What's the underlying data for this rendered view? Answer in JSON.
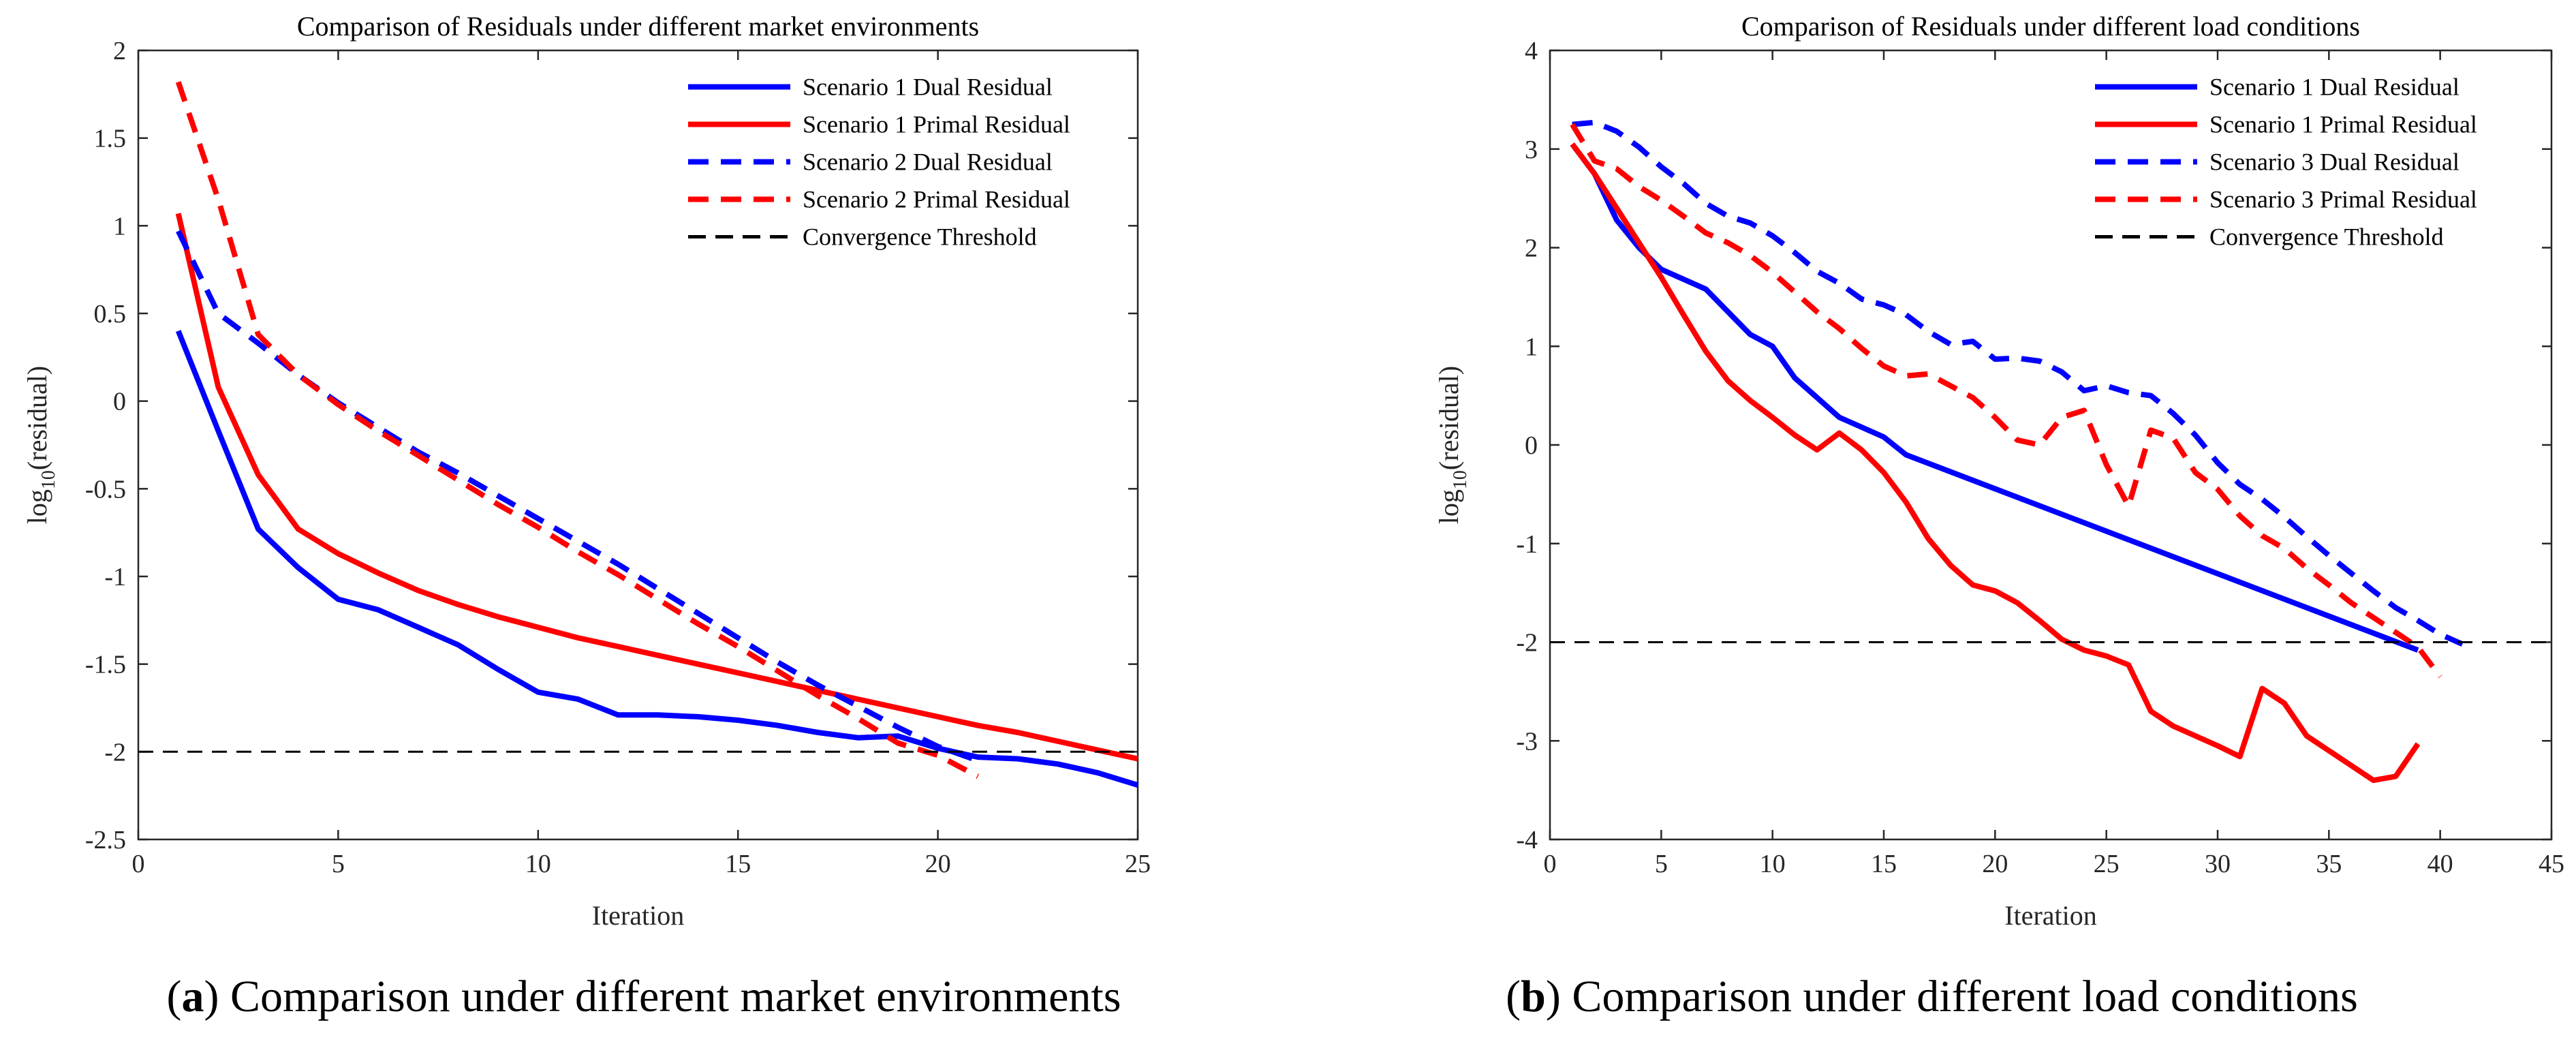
{
  "figure": {
    "captions": [
      {
        "letter": "a",
        "open": "(",
        "close": ")",
        "text": "Comparison under different market environments"
      },
      {
        "letter": "b",
        "open": "(",
        "close": ")",
        "text": "Comparison under different load conditions"
      }
    ]
  },
  "chart_data": [
    {
      "type": "line",
      "title": "Comparison of Residuals under different market environments",
      "xlabel": "Iteration",
      "ylabel_base": "log",
      "ylabel_sub": "10",
      "ylabel_rest": "(residual)",
      "xlim": [
        0,
        25
      ],
      "ylim": [
        -2.5,
        2
      ],
      "xticks": [
        0,
        5,
        10,
        15,
        20,
        25
      ],
      "yticks": [
        -2.5,
        -2,
        -1.5,
        -1,
        -0.5,
        0,
        0.5,
        1,
        1.5,
        2
      ],
      "ytick_labels": [
        "-2.5",
        "-2",
        "-1.5",
        "-1",
        "-0.5",
        "0",
        "0.5",
        "1",
        "1.5",
        "2"
      ],
      "xtick_labels": [
        "0",
        "5",
        "10",
        "15",
        "20",
        "25"
      ],
      "legend_position": "top-right",
      "series": [
        {
          "name": "Scenario 1 Dual Residual",
          "color": "#0000ff",
          "style": "solid",
          "x": [
            1,
            2,
            3,
            4,
            5,
            6,
            7,
            8,
            9,
            10,
            11,
            12,
            13,
            14,
            15,
            16,
            17,
            18,
            19,
            20,
            21,
            22,
            23,
            24,
            25
          ],
          "y": [
            0.4,
            -0.17,
            -0.73,
            -0.95,
            -1.13,
            -1.19,
            -1.29,
            -1.39,
            -1.53,
            -1.66,
            -1.7,
            -1.79,
            -1.79,
            -1.8,
            -1.82,
            -1.85,
            -1.89,
            -1.92,
            -1.91,
            -1.98,
            -2.03,
            -2.04,
            -2.07,
            -2.12,
            -2.19
          ]
        },
        {
          "name": "Scenario 1 Primal Residual",
          "color": "#ff0000",
          "style": "solid",
          "x": [
            1,
            2,
            3,
            4,
            5,
            6,
            7,
            8,
            9,
            10,
            11,
            12,
            13,
            14,
            15,
            16,
            17,
            18,
            19,
            20,
            21,
            22,
            23,
            24,
            25
          ],
          "y": [
            1.07,
            0.08,
            -0.42,
            -0.73,
            -0.87,
            -0.98,
            -1.08,
            -1.16,
            -1.23,
            -1.29,
            -1.35,
            -1.4,
            -1.45,
            -1.5,
            -1.55,
            -1.6,
            -1.65,
            -1.7,
            -1.75,
            -1.8,
            -1.85,
            -1.89,
            -1.94,
            -1.99,
            -2.04
          ]
        },
        {
          "name": "Scenario 2 Dual Residual",
          "color": "#0000ff",
          "style": "dashed",
          "x": [
            1,
            2,
            3,
            4,
            5,
            6,
            7,
            8,
            9,
            10,
            11,
            12,
            13,
            14,
            15,
            16,
            17,
            18,
            19,
            20,
            21
          ],
          "y": [
            0.97,
            0.5,
            0.33,
            0.15,
            -0.01,
            -0.15,
            -0.29,
            -0.41,
            -0.54,
            -0.67,
            -0.8,
            -0.93,
            -1.07,
            -1.21,
            -1.35,
            -1.49,
            -1.62,
            -1.74,
            -1.86,
            -1.97,
            -2.05
          ]
        },
        {
          "name": "Scenario 2 Primal Residual",
          "color": "#ff0000",
          "style": "dashed",
          "x": [
            1,
            2,
            3,
            4,
            5,
            6,
            7,
            8,
            9,
            10,
            11,
            12,
            13,
            14,
            15,
            16,
            17,
            18,
            19,
            20,
            21
          ],
          "y": [
            1.82,
            1.15,
            0.38,
            0.15,
            -0.02,
            -0.17,
            -0.31,
            -0.45,
            -0.59,
            -0.72,
            -0.86,
            -0.99,
            -1.13,
            -1.27,
            -1.4,
            -1.54,
            -1.68,
            -1.81,
            -1.95,
            -2.02,
            -2.14
          ]
        },
        {
          "name": "Convergence Threshold",
          "color": "#000000",
          "style": "threshold",
          "x": [
            0,
            25
          ],
          "y": [
            -2,
            -2
          ]
        }
      ]
    },
    {
      "type": "line",
      "title": "Comparison of Residuals under different load conditions",
      "xlabel": "Iteration",
      "ylabel_base": "log",
      "ylabel_sub": "10",
      "ylabel_rest": "(residual)",
      "xlim": [
        0,
        45
      ],
      "ylim": [
        -4,
        4
      ],
      "xticks": [
        0,
        5,
        10,
        15,
        20,
        25,
        30,
        35,
        40,
        45
      ],
      "yticks": [
        -4,
        -3,
        -2,
        -1,
        0,
        1,
        2,
        3,
        4
      ],
      "ytick_labels": [
        "-4",
        "-3",
        "-2",
        "-1",
        "0",
        "1",
        "2",
        "3",
        "4"
      ],
      "xtick_labels": [
        "0",
        "5",
        "10",
        "15",
        "20",
        "25",
        "30",
        "35",
        "40",
        "45"
      ],
      "legend_position": "top-right",
      "series": [
        {
          "name": "Scenario 1 Dual Residual",
          "color": "#0000ff",
          "style": "solid",
          "x": [
            1,
            2,
            3,
            4,
            5,
            6,
            7,
            8,
            9,
            10,
            11,
            12,
            13,
            14,
            15,
            16,
            39
          ],
          "y": [
            3.05,
            2.75,
            2.28,
            2.0,
            1.78,
            1.68,
            1.58,
            1.35,
            1.12,
            1.0,
            0.68,
            0.48,
            0.28,
            0.18,
            0.08,
            -0.1,
            -2.08
          ]
        },
        {
          "name": "Scenario 1 Primal Residual",
          "color": "#ff0000",
          "style": "solid",
          "x": [
            1,
            2,
            3,
            4,
            5,
            6,
            7,
            8,
            9,
            10,
            11,
            12,
            13,
            14,
            15,
            16,
            17,
            18,
            19,
            20,
            21,
            22,
            23,
            24,
            25,
            26,
            27,
            28,
            29,
            30,
            31,
            32,
            33,
            34,
            35,
            36,
            37,
            38,
            39
          ],
          "y": [
            3.05,
            2.75,
            2.4,
            2.05,
            1.7,
            1.32,
            0.95,
            0.65,
            0.45,
            0.28,
            0.1,
            -0.05,
            0.12,
            -0.05,
            -0.28,
            -0.58,
            -0.95,
            -1.22,
            -1.42,
            -1.48,
            -1.6,
            -1.78,
            -1.97,
            -2.08,
            -2.14,
            -2.23,
            -2.7,
            -2.85,
            -2.95,
            -3.05,
            -3.16,
            -2.47,
            -2.62,
            -2.95,
            -3.1,
            -3.25,
            -3.4,
            -3.36,
            -3.03
          ]
        },
        {
          "name": "Scenario 3 Dual Residual",
          "color": "#0000ff",
          "style": "dashed",
          "x": [
            1,
            2,
            3,
            4,
            5,
            6,
            7,
            8,
            9,
            10,
            11,
            12,
            13,
            14,
            15,
            16,
            17,
            18,
            19,
            20,
            21,
            22,
            23,
            24,
            25,
            26,
            27,
            28,
            29,
            30,
            31,
            32,
            33,
            34,
            35,
            36,
            37,
            38,
            39,
            40,
            41
          ],
          "y": [
            3.25,
            3.27,
            3.18,
            3.02,
            2.82,
            2.65,
            2.45,
            2.32,
            2.25,
            2.12,
            1.95,
            1.76,
            1.64,
            1.48,
            1.42,
            1.32,
            1.15,
            1.02,
            1.05,
            0.87,
            0.88,
            0.85,
            0.74,
            0.55,
            0.6,
            0.53,
            0.5,
            0.32,
            0.1,
            -0.18,
            -0.4,
            -0.55,
            -0.73,
            -0.93,
            -1.12,
            -1.3,
            -1.48,
            -1.65,
            -1.78,
            -1.92,
            -2.02
          ]
        },
        {
          "name": "Scenario 3 Primal Residual",
          "color": "#ff0000",
          "style": "dashed",
          "x": [
            1,
            2,
            3,
            4,
            5,
            6,
            7,
            8,
            9,
            10,
            11,
            12,
            13,
            14,
            15,
            16,
            17,
            18,
            19,
            20,
            21,
            22,
            23,
            24,
            25,
            26,
            27,
            28,
            29,
            30,
            31,
            32,
            33,
            34,
            35,
            36,
            37,
            38,
            39,
            40
          ],
          "y": [
            3.25,
            2.88,
            2.8,
            2.62,
            2.48,
            2.32,
            2.15,
            2.05,
            1.92,
            1.75,
            1.55,
            1.35,
            1.18,
            0.98,
            0.8,
            0.7,
            0.72,
            0.6,
            0.48,
            0.28,
            0.05,
            0.0,
            0.28,
            0.35,
            -0.2,
            -0.62,
            0.15,
            0.07,
            -0.28,
            -0.45,
            -0.72,
            -0.92,
            -1.05,
            -1.25,
            -1.42,
            -1.6,
            -1.75,
            -1.9,
            -2.05,
            -2.35
          ]
        },
        {
          "name": "Convergence Threshold",
          "color": "#000000",
          "style": "threshold",
          "x": [
            0,
            45
          ],
          "y": [
            -2,
            -2
          ]
        }
      ]
    }
  ]
}
